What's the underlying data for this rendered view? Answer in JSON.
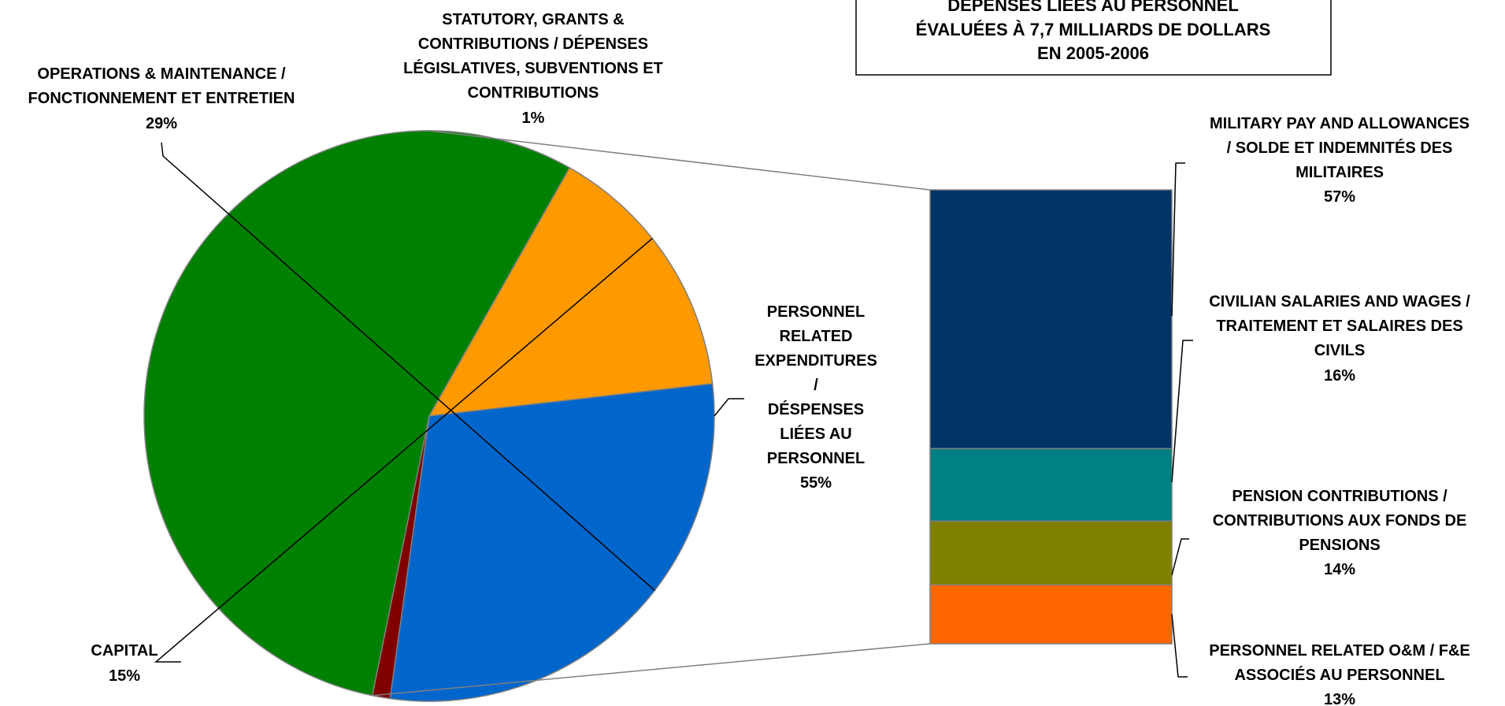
{
  "title_box": {
    "lines": [
      "DÉPENSES LIÉES AU PERSONNEL",
      "ÉVALUÉES À 7,7 MILLIARDS DE DOLLARS",
      "EN 2005-2006"
    ]
  },
  "chart_data": [
    {
      "type": "pie",
      "slices": [
        {
          "key": "personnel",
          "label_lines": [
            "PERSONNEL",
            "RELATED",
            "EXPENDITURES",
            "/",
            "DÉSPENSES",
            "LIÉES AU",
            "PERSONNEL"
          ],
          "pct_label": "55%",
          "value": 55,
          "color": "#008000"
        },
        {
          "key": "capital",
          "label_lines": [
            "CAPITAL"
          ],
          "pct_label": "15%",
          "value": 15,
          "color": "#FF9900"
        },
        {
          "key": "om",
          "label_lines": [
            "OPERATIONS & MAINTENANCE /",
            "FONCTIONNEMENT ET ENTRETIEN"
          ],
          "pct_label": "29%",
          "value": 29,
          "color": "#0066CC"
        },
        {
          "key": "statutory",
          "label_lines": [
            "STATUTORY, GRANTS &",
            "CONTRIBUTIONS / DÉPENSES",
            "LÉGISLATIVES, SUBVENTIONS ET",
            "CONTRIBUTIONS"
          ],
          "pct_label": "1%",
          "value": 1,
          "color": "#800000"
        }
      ]
    },
    {
      "type": "bar",
      "stacked": true,
      "series": [
        {
          "key": "military",
          "label_lines": [
            "MILITARY PAY AND ALLOWANCES",
            "/ SOLDE ET INDEMNITÉS DES",
            "MILITAIRES"
          ],
          "pct_label": "57%",
          "value": 57,
          "color": "#003366"
        },
        {
          "key": "civilian",
          "label_lines": [
            "CIVILIAN SALARIES AND WAGES /",
            "TRAITEMENT ET SALAIRES DES",
            "CIVILS"
          ],
          "pct_label": "16%",
          "value": 16,
          "color": "#008080"
        },
        {
          "key": "pension",
          "label_lines": [
            "PENSION CONTRIBUTIONS /",
            "CONTRIBUTIONS AUX FONDS DE",
            "PENSIONS"
          ],
          "pct_label": "14%",
          "value": 14,
          "color": "#808000"
        },
        {
          "key": "om_personnel",
          "label_lines": [
            "PERSONNEL RELATED O&M / F&E",
            "ASSOCIÉS AU PERSONNEL"
          ],
          "pct_label": "13%",
          "value": 13,
          "color": "#FF6600"
        }
      ]
    }
  ]
}
